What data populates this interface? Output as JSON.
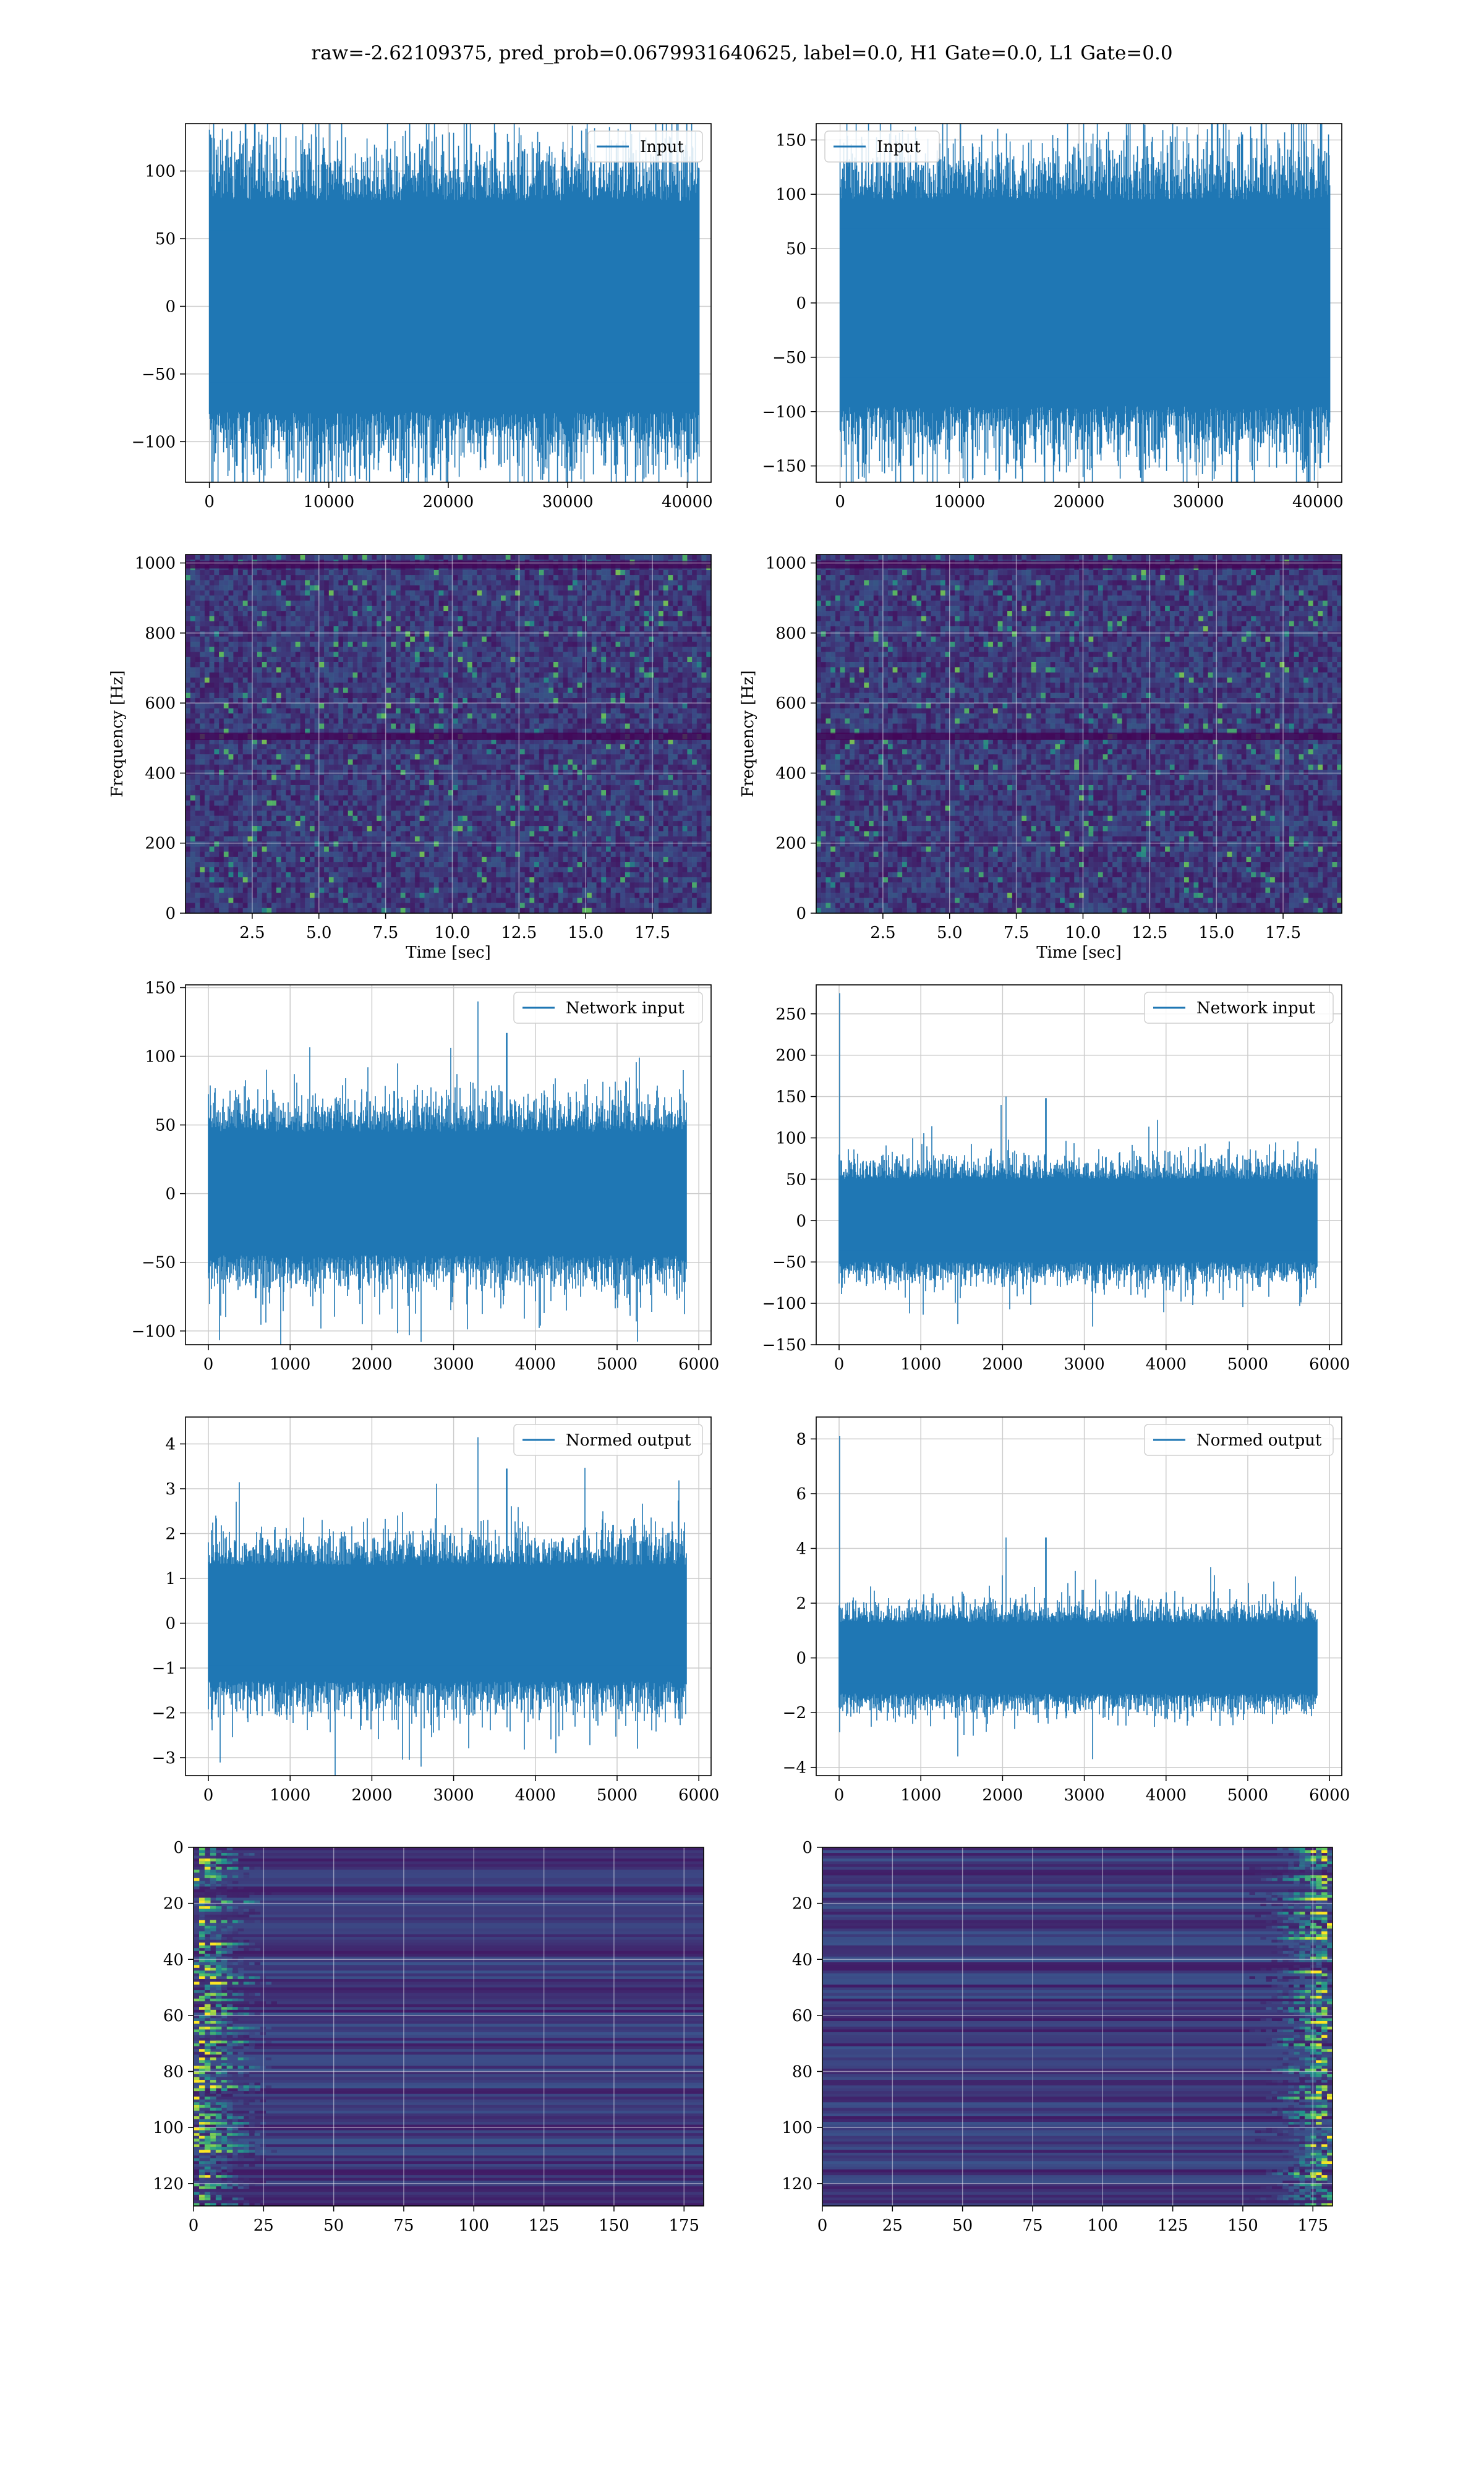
{
  "figure": {
    "title": "raw=-2.62109375, pred_prob=0.0679931640625, label=0.0, H1 Gate=0.0, L1 Gate=0.0"
  },
  "colors": {
    "series": "#1f77b4",
    "grid": "#cccccc",
    "spectro_low": "#440154",
    "spectro_mid": "#21918c",
    "spectro_high": "#fde725"
  },
  "chart_data": [
    {
      "id": "h1-input",
      "type": "line",
      "xlim": [
        -2000,
        42000
      ],
      "ylim": [
        -130,
        135
      ],
      "xticks": [
        0,
        10000,
        20000,
        30000,
        40000
      ],
      "yticks": [
        -100,
        -50,
        0,
        50,
        100
      ],
      "xlabel": "",
      "ylabel": "",
      "grid": true,
      "legend": "top-right",
      "series": [
        {
          "name": "Input",
          "n": 41000,
          "x_end": 41000,
          "envelope": [
            -78,
            78
          ],
          "peaks": [
            {
              "x": 19500,
              "y": 127
            },
            {
              "x": 9600,
              "y": 117
            },
            {
              "x": 14800,
              "y": 116
            },
            {
              "x": 2300,
              "y": -118
            },
            {
              "x": 17900,
              "y": -116
            },
            {
              "x": 40800,
              "y": -108
            }
          ]
        }
      ]
    },
    {
      "id": "l1-input",
      "type": "line",
      "xlim": [
        -2000,
        42000
      ],
      "ylim": [
        -165,
        165
      ],
      "xticks": [
        0,
        10000,
        20000,
        30000,
        40000
      ],
      "yticks": [
        -150,
        -100,
        -50,
        0,
        50,
        100,
        150
      ],
      "xlabel": "",
      "ylabel": "",
      "grid": true,
      "legend": "top-left",
      "series": [
        {
          "name": "Input",
          "n": 41000,
          "x_end": 41000,
          "envelope": [
            -95,
            95
          ],
          "peaks": [
            {
              "x": 35500,
              "y": 151
            },
            {
              "x": 39500,
              "y": 150
            },
            {
              "x": 29500,
              "y": 133
            },
            {
              "x": 40200,
              "y": -152
            },
            {
              "x": 5000,
              "y": -147
            },
            {
              "x": 14800,
              "y": -145
            }
          ]
        }
      ]
    },
    {
      "id": "h1-spectrogram",
      "type": "heatmap",
      "xlim": [
        0,
        19.7
      ],
      "ylim": [
        0,
        1024
      ],
      "xticks": [
        2.5,
        5.0,
        7.5,
        10.0,
        12.5,
        15.0,
        17.5
      ],
      "yticks": [
        0,
        200,
        400,
        600,
        800,
        1000
      ],
      "xlabel": "Time [sec]",
      "ylabel": "Frequency [Hz]",
      "grid": true,
      "dark_bands_hz": [
        505,
        995
      ],
      "colormap": "viridis"
    },
    {
      "id": "l1-spectrogram",
      "type": "heatmap",
      "xlim": [
        0,
        19.7
      ],
      "ylim": [
        0,
        1024
      ],
      "xticks": [
        2.5,
        5.0,
        7.5,
        10.0,
        12.5,
        15.0,
        17.5
      ],
      "yticks": [
        0,
        200,
        400,
        600,
        800,
        1000
      ],
      "xlabel": "Time [sec]",
      "ylabel": "Frequency [Hz]",
      "grid": true,
      "dark_bands_hz": [
        505,
        995
      ],
      "colormap": "viridis"
    },
    {
      "id": "h1-network-input",
      "type": "line",
      "xlim": [
        -280,
        6150
      ],
      "ylim": [
        -110,
        152
      ],
      "xticks": [
        0,
        1000,
        2000,
        3000,
        4000,
        5000,
        6000
      ],
      "yticks": [
        -100,
        -50,
        0,
        50,
        100,
        150
      ],
      "xlabel": "",
      "ylabel": "",
      "grid": true,
      "legend": "top-right",
      "series": [
        {
          "name": "Network input",
          "n": 5850,
          "x_end": 5850,
          "envelope": [
            -45,
            45
          ],
          "peaks": [
            {
              "x": 3300,
              "y": 140
            },
            {
              "x": 3650,
              "y": 117
            },
            {
              "x": 2600,
              "y": -108
            },
            {
              "x": 2460,
              "y": -103
            },
            {
              "x": 1950,
              "y": 92
            }
          ]
        }
      ]
    },
    {
      "id": "l1-network-input",
      "type": "line",
      "xlim": [
        -280,
        6150
      ],
      "ylim": [
        -150,
        285
      ],
      "xticks": [
        0,
        1000,
        2000,
        3000,
        4000,
        5000,
        6000
      ],
      "yticks": [
        -150,
        -100,
        -50,
        0,
        50,
        100,
        150,
        200,
        250
      ],
      "xlabel": "",
      "ylabel": "",
      "grid": true,
      "legend": "top-right",
      "series": [
        {
          "name": "Network input",
          "n": 5850,
          "x_end": 5850,
          "envelope": [
            -50,
            50
          ],
          "peaks": [
            {
              "x": 5,
              "y": 275
            },
            {
              "x": 2040,
              "y": 150
            },
            {
              "x": 2530,
              "y": 148
            },
            {
              "x": 1980,
              "y": 140
            },
            {
              "x": 3100,
              "y": -128
            },
            {
              "x": 1450,
              "y": -125
            }
          ]
        }
      ]
    },
    {
      "id": "h1-normed-output",
      "type": "line",
      "xlim": [
        -280,
        6150
      ],
      "ylim": [
        -3.4,
        4.6
      ],
      "xticks": [
        0,
        1000,
        2000,
        3000,
        4000,
        5000,
        6000
      ],
      "yticks": [
        -3,
        -2,
        -1,
        0,
        1,
        2,
        3,
        4
      ],
      "xlabel": "",
      "ylabel": "",
      "grid": true,
      "legend": "top-right",
      "series": [
        {
          "name": "Normed output",
          "n": 5850,
          "x_end": 5850,
          "envelope": [
            -1.3,
            1.3
          ],
          "peaks": [
            {
              "x": 3300,
              "y": 4.15
            },
            {
              "x": 3650,
              "y": 3.45
            },
            {
              "x": 2600,
              "y": -3.2
            },
            {
              "x": 2460,
              "y": -3.05
            },
            {
              "x": 4250,
              "y": -2.9
            },
            {
              "x": 5250,
              "y": -2.8
            }
          ]
        }
      ]
    },
    {
      "id": "l1-normed-output",
      "type": "line",
      "xlim": [
        -280,
        6150
      ],
      "ylim": [
        -4.3,
        8.8
      ],
      "xticks": [
        0,
        1000,
        2000,
        3000,
        4000,
        5000,
        6000
      ],
      "yticks": [
        -4,
        -2,
        0,
        2,
        4,
        6,
        8
      ],
      "xlabel": "",
      "ylabel": "",
      "grid": true,
      "legend": "top-right",
      "series": [
        {
          "name": "Normed output",
          "n": 5850,
          "x_end": 5850,
          "envelope": [
            -1.3,
            1.3
          ],
          "peaks": [
            {
              "x": 5,
              "y": 8.1
            },
            {
              "x": 2040,
              "y": 4.4
            },
            {
              "x": 2530,
              "y": 4.4
            },
            {
              "x": 3100,
              "y": -3.7
            },
            {
              "x": 1450,
              "y": -3.6
            }
          ]
        }
      ]
    },
    {
      "id": "h1-activations",
      "type": "heatmap",
      "xlim": [
        0,
        182
      ],
      "ylim": [
        128,
        0
      ],
      "xticks": [
        0,
        25,
        50,
        75,
        100,
        125,
        150,
        175
      ],
      "yticks": [
        0,
        20,
        40,
        60,
        80,
        100,
        120
      ],
      "xlabel": "",
      "ylabel": "",
      "grid": true,
      "hot_side": "left",
      "colormap": "viridis"
    },
    {
      "id": "l1-activations",
      "type": "heatmap",
      "xlim": [
        0,
        182
      ],
      "ylim": [
        128,
        0
      ],
      "xticks": [
        0,
        25,
        50,
        75,
        100,
        125,
        150,
        175
      ],
      "yticks": [
        0,
        20,
        40,
        60,
        80,
        100,
        120
      ],
      "xlabel": "",
      "ylabel": "",
      "grid": true,
      "hot_side": "right",
      "colormap": "viridis"
    }
  ]
}
